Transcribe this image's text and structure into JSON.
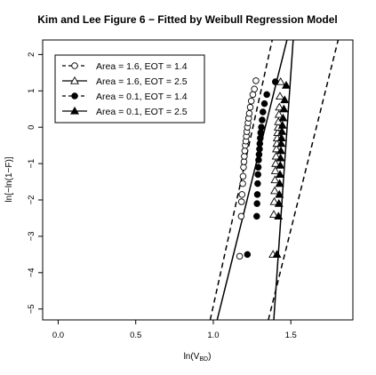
{
  "chart_data": {
    "type": "scatter",
    "title": "Kim and Lee Figure 6 − Fitted by Weibull Regression Model",
    "xlabel": "ln(V",
    "xlabel_sub": "BD",
    "xlabel_close": ")",
    "ylabel": "ln[−ln(1−F)]",
    "xlim": [
      -0.1,
      1.9
    ],
    "ylim": [
      -5.3,
      2.4
    ],
    "x_ticks": [
      0.0,
      0.5,
      1.0,
      1.5
    ],
    "x_tick_labels": [
      "0.0",
      "0.5",
      "1.0",
      "1.5"
    ],
    "y_ticks": [
      -5,
      -4,
      -3,
      -2,
      -1,
      0,
      1,
      2
    ],
    "y_tick_labels": [
      "−5",
      "−4",
      "−3",
      "−2",
      "−1",
      "0",
      "1",
      "2"
    ],
    "legend_position": "top-left",
    "series": [
      {
        "name": "Area = 1.6, EOT = 1.4",
        "marker": "open-circle",
        "line": "dashed",
        "x": [
          1.17,
          1.18,
          1.182,
          1.185,
          1.19,
          1.192,
          1.195,
          1.198,
          1.2,
          1.203,
          1.206,
          1.21,
          1.213,
          1.216,
          1.22,
          1.224,
          1.228,
          1.232,
          1.238,
          1.245,
          1.255,
          1.265,
          1.275
        ],
        "y": [
          -3.55,
          -2.45,
          -2.05,
          -1.85,
          -1.55,
          -1.35,
          -1.1,
          -0.95,
          -0.8,
          -0.65,
          -0.5,
          -0.38,
          -0.25,
          -0.12,
          0.0,
          0.12,
          0.25,
          0.38,
          0.55,
          0.72,
          0.9,
          1.05,
          1.28
        ],
        "fit": [
          [
            0.98,
            -5.3
          ],
          [
            1.38,
            2.4
          ]
        ]
      },
      {
        "name": "Area = 1.6, EOT = 2.5",
        "marker": "open-triangle",
        "line": "solid",
        "x": [
          1.385,
          1.39,
          1.393,
          1.396,
          1.398,
          1.4,
          1.402,
          1.405,
          1.407,
          1.41,
          1.412,
          1.415,
          1.418,
          1.42,
          1.423,
          1.426,
          1.43,
          1.434
        ],
        "y": [
          -3.5,
          -2.4,
          -2.05,
          -1.75,
          -1.45,
          -1.2,
          -1.0,
          -0.8,
          -0.6,
          -0.45,
          -0.3,
          -0.15,
          0.0,
          0.15,
          0.35,
          0.55,
          0.85,
          1.25
        ],
        "fit": [
          [
            1.025,
            -5.3
          ],
          [
            1.475,
            2.4
          ]
        ]
      },
      {
        "name": "Area = 0.1, EOT = 1.4",
        "marker": "filled-circle",
        "line": "dashed",
        "x": [
          1.22,
          1.28,
          1.282,
          1.284,
          1.286,
          1.288,
          1.29,
          1.292,
          1.295,
          1.298,
          1.3,
          1.303,
          1.306,
          1.31,
          1.315,
          1.32,
          1.33,
          1.345,
          1.4
        ],
        "y": [
          -3.5,
          -2.45,
          -2.1,
          -1.85,
          -1.55,
          -1.3,
          -1.1,
          -0.9,
          -0.75,
          -0.6,
          -0.45,
          -0.3,
          -0.15,
          0.0,
          0.2,
          0.42,
          0.65,
          0.9,
          1.25
        ],
        "fit": [
          [
            1.355,
            -5.3
          ],
          [
            1.805,
            2.4
          ]
        ]
      },
      {
        "name": "Area = 0.1, EOT = 2.5",
        "marker": "filled-triangle",
        "line": "solid",
        "x": [
          1.41,
          1.42,
          1.423,
          1.426,
          1.428,
          1.43,
          1.432,
          1.434,
          1.436,
          1.438,
          1.44,
          1.443,
          1.446,
          1.45,
          1.455,
          1.46,
          1.47
        ],
        "y": [
          -3.5,
          -2.45,
          -2.1,
          -1.85,
          -1.55,
          -1.3,
          -1.05,
          -0.85,
          -0.65,
          -0.45,
          -0.3,
          -0.12,
          0.05,
          0.25,
          0.5,
          0.75,
          1.15
        ],
        "fit": [
          [
            1.39,
            -5.3
          ],
          [
            1.515,
            2.4
          ]
        ]
      }
    ]
  }
}
